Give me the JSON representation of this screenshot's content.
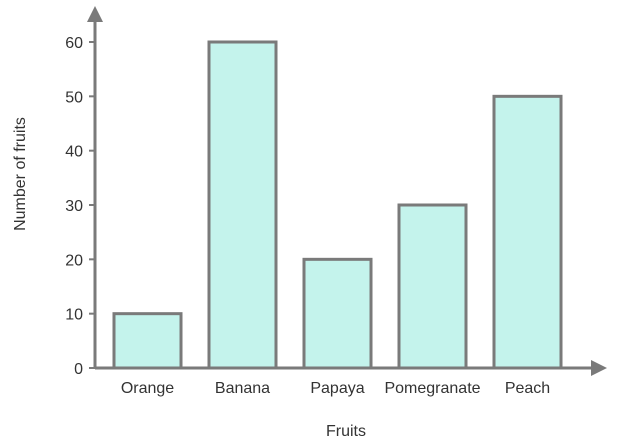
{
  "chart_data": {
    "type": "bar",
    "categories": [
      "Orange",
      "Banana",
      "Papaya",
      "Pomegranate",
      "Peach"
    ],
    "values": [
      10,
      60,
      20,
      30,
      50
    ],
    "xlabel": "Fruits",
    "ylabel": "Number of fruits",
    "ylim": [
      0,
      60
    ],
    "yticks": [
      0,
      10,
      20,
      30,
      40,
      50,
      60
    ],
    "grid": false,
    "legend": "none",
    "colors": {
      "bar_fill": "#c4f3ec",
      "bar_stroke": "#7a7a7a",
      "axis": "#7a7a7a",
      "text": "#333333"
    }
  }
}
